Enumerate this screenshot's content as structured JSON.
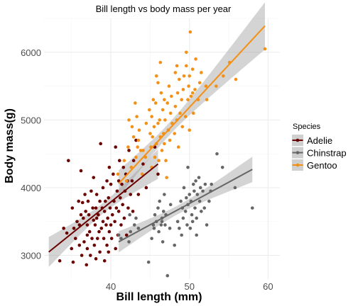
{
  "chart_data": {
    "type": "scatter",
    "title": "Bill length vs body mass per year",
    "xlabel": "Bill length (mm)",
    "ylabel": "Body mass(g)",
    "xlim": [
      31.5,
      61.5
    ],
    "ylim": [
      2650,
      6500
    ],
    "x_ticks": [
      40,
      50,
      60
    ],
    "y_ticks": [
      3000,
      4000,
      5000,
      6000
    ],
    "grid": true,
    "legend": {
      "title": "Species",
      "placement": "right"
    },
    "series": [
      {
        "name": "Adelie",
        "color": "#6b0000",
        "fit": {
          "x": [
            32.1,
            46.0
          ],
          "y": [
            3050,
            4350
          ]
        },
        "points": [
          [
            33.5,
            2920
          ],
          [
            34.0,
            3400
          ],
          [
            34.4,
            3330
          ],
          [
            34.6,
            4400
          ],
          [
            35.0,
            3100
          ],
          [
            35.1,
            3700
          ],
          [
            35.3,
            3400
          ],
          [
            35.5,
            3250
          ],
          [
            35.7,
            3500
          ],
          [
            35.9,
            3800
          ],
          [
            35.2,
            2900
          ],
          [
            36.0,
            3450
          ],
          [
            36.0,
            3150
          ],
          [
            36.2,
            3600
          ],
          [
            36.2,
            4250
          ],
          [
            36.4,
            3780
          ],
          [
            36.5,
            3550
          ],
          [
            36.6,
            3200
          ],
          [
            36.7,
            3900
          ],
          [
            36.8,
            3650
          ],
          [
            36.9,
            2860
          ],
          [
            37.0,
            3450
          ],
          [
            37.0,
            3100
          ],
          [
            37.1,
            3800
          ],
          [
            37.2,
            3600
          ],
          [
            37.3,
            3350
          ],
          [
            37.4,
            3000
          ],
          [
            37.5,
            3950
          ],
          [
            37.6,
            3250
          ],
          [
            37.7,
            3700
          ],
          [
            37.8,
            3520
          ],
          [
            37.8,
            4150
          ],
          [
            37.9,
            3150
          ],
          [
            38.0,
            3450
          ],
          [
            38.1,
            3700
          ],
          [
            38.1,
            2950
          ],
          [
            38.2,
            3900
          ],
          [
            38.3,
            3250
          ],
          [
            38.4,
            3600
          ],
          [
            38.5,
            3350
          ],
          [
            38.6,
            3800
          ],
          [
            38.6,
            3050
          ],
          [
            38.7,
            4650
          ],
          [
            38.8,
            3400
          ],
          [
            38.9,
            3700
          ],
          [
            39.0,
            3500
          ],
          [
            39.0,
            4000
          ],
          [
            39.1,
            3250
          ],
          [
            39.2,
            3650
          ],
          [
            39.2,
            2920
          ],
          [
            39.3,
            3800
          ],
          [
            39.4,
            3450
          ],
          [
            39.5,
            4100
          ],
          [
            39.5,
            3150
          ],
          [
            39.6,
            3550
          ],
          [
            39.7,
            3850
          ],
          [
            39.8,
            4300
          ],
          [
            39.8,
            3350
          ],
          [
            39.9,
            3700
          ],
          [
            40.0,
            3450
          ],
          [
            40.0,
            4050
          ],
          [
            40.1,
            3250
          ],
          [
            40.2,
            3600
          ],
          [
            40.3,
            4200
          ],
          [
            40.4,
            3800
          ],
          [
            40.5,
            3500
          ],
          [
            40.6,
            4600
          ],
          [
            40.7,
            3700
          ],
          [
            40.8,
            3950
          ],
          [
            40.9,
            3300
          ],
          [
            41.0,
            4100
          ],
          [
            41.0,
            3650
          ],
          [
            41.1,
            4400
          ],
          [
            41.2,
            3850
          ],
          [
            41.3,
            3450
          ],
          [
            41.4,
            4050
          ],
          [
            41.5,
            3750
          ],
          [
            41.6,
            4300
          ],
          [
            41.7,
            3550
          ],
          [
            41.8,
            3950
          ],
          [
            41.9,
            4200
          ],
          [
            42.0,
            3300
          ],
          [
            42.1,
            4100
          ],
          [
            42.2,
            3700
          ],
          [
            42.3,
            4550
          ],
          [
            42.5,
            3900
          ],
          [
            42.7,
            4100
          ],
          [
            42.8,
            3650
          ],
          [
            42.9,
            4400
          ],
          [
            43.2,
            4700
          ],
          [
            43.5,
            3900
          ],
          [
            44.1,
            4350
          ],
          [
            44.5,
            4000
          ],
          [
            45.6,
            4600
          ],
          [
            46.0,
            4200
          ],
          [
            37.0,
            3300
          ],
          [
            38.2,
            3550
          ],
          [
            39.7,
            3050
          ],
          [
            40.6,
            3100
          ],
          [
            36.3,
            3000
          ]
        ]
      },
      {
        "name": "Chinstrap",
        "color": "#666666",
        "fit": {
          "x": [
            41.0,
            58.0
          ],
          "y": [
            3200,
            4270
          ]
        },
        "points": [
          [
            41.0,
            3300
          ],
          [
            41.3,
            3250
          ],
          [
            42.3,
            3200
          ],
          [
            42.4,
            3600
          ],
          [
            42.5,
            3350
          ],
          [
            43.0,
            3450
          ],
          [
            43.2,
            3550
          ],
          [
            43.5,
            3400
          ],
          [
            45.2,
            3250
          ],
          [
            45.5,
            3400
          ],
          [
            45.6,
            3600
          ],
          [
            45.8,
            3500
          ],
          [
            46.0,
            3700
          ],
          [
            46.1,
            3350
          ],
          [
            46.2,
            3800
          ],
          [
            46.4,
            3450
          ],
          [
            46.5,
            3550
          ],
          [
            46.6,
            3200
          ],
          [
            46.7,
            3650
          ],
          [
            46.8,
            3900
          ],
          [
            46.9,
            3450
          ],
          [
            47.0,
            3600
          ],
          [
            47.2,
            2700
          ],
          [
            47.5,
            3400
          ],
          [
            47.6,
            3750
          ],
          [
            48.1,
            3150
          ],
          [
            48.5,
            3500
          ],
          [
            48.7,
            3400
          ],
          [
            48.9,
            3800
          ],
          [
            49.0,
            3300
          ],
          [
            49.1,
            3700
          ],
          [
            49.2,
            3550
          ],
          [
            49.3,
            4000
          ],
          [
            49.5,
            3650
          ],
          [
            49.6,
            3850
          ],
          [
            49.7,
            3450
          ],
          [
            49.8,
            3750
          ],
          [
            50.0,
            3900
          ],
          [
            50.1,
            3400
          ],
          [
            50.2,
            3800
          ],
          [
            50.3,
            3600
          ],
          [
            50.4,
            3500
          ],
          [
            50.5,
            4050
          ],
          [
            50.6,
            3950
          ],
          [
            50.7,
            3700
          ],
          [
            50.8,
            4100
          ],
          [
            50.9,
            3550
          ],
          [
            51.0,
            3900
          ],
          [
            51.3,
            3800
          ],
          [
            51.4,
            4000
          ],
          [
            51.5,
            3650
          ],
          [
            51.7,
            3950
          ],
          [
            51.9,
            3700
          ],
          [
            52.0,
            4050
          ],
          [
            52.2,
            3450
          ],
          [
            52.5,
            3800
          ],
          [
            52.7,
            3950
          ],
          [
            52.8,
            4050
          ],
          [
            53.5,
            4500
          ],
          [
            54.2,
            4300
          ],
          [
            55.8,
            4000
          ],
          [
            58.0,
            3700
          ],
          [
            50.9,
            3300
          ],
          [
            45.4,
            3450
          ],
          [
            44.8,
            2900
          ],
          [
            49.8,
            4300
          ],
          [
            51.2,
            4150
          ],
          [
            46.5,
            3500
          ]
        ]
      },
      {
        "name": "Gentoo",
        "color": "#f39015",
        "fit": {
          "x": [
            41.0,
            59.6
          ],
          "y": [
            4060,
            6390
          ]
        },
        "points": [
          [
            40.9,
            4200
          ],
          [
            41.7,
            4400
          ],
          [
            42.0,
            4100
          ],
          [
            42.2,
            4600
          ],
          [
            42.6,
            4300
          ],
          [
            42.7,
            4900
          ],
          [
            42.9,
            4750
          ],
          [
            43.2,
            4450
          ],
          [
            43.3,
            5050
          ],
          [
            43.4,
            4600
          ],
          [
            43.5,
            4700
          ],
          [
            43.6,
            4850
          ],
          [
            43.8,
            4550
          ],
          [
            44.0,
            4200
          ],
          [
            44.4,
            4450
          ],
          [
            44.5,
            4950
          ],
          [
            44.9,
            5150
          ],
          [
            45.0,
            4800
          ],
          [
            45.1,
            4600
          ],
          [
            45.2,
            5050
          ],
          [
            45.2,
            4300
          ],
          [
            45.3,
            4750
          ],
          [
            45.4,
            5300
          ],
          [
            45.5,
            4900
          ],
          [
            45.6,
            4450
          ],
          [
            45.7,
            5250
          ],
          [
            45.8,
            4650
          ],
          [
            46.0,
            5550
          ],
          [
            46.0,
            4950
          ],
          [
            46.1,
            4400
          ],
          [
            46.2,
            5000
          ],
          [
            46.3,
            4750
          ],
          [
            46.4,
            5400
          ],
          [
            46.5,
            4550
          ],
          [
            46.6,
            5150
          ],
          [
            46.7,
            4800
          ],
          [
            46.8,
            5300
          ],
          [
            46.8,
            4650
          ],
          [
            46.9,
            5000
          ],
          [
            47.0,
            4400
          ],
          [
            47.2,
            5250
          ],
          [
            47.3,
            4850
          ],
          [
            47.4,
            5500
          ],
          [
            47.5,
            4700
          ],
          [
            47.6,
            5100
          ],
          [
            47.7,
            5350
          ],
          [
            47.8,
            4950
          ],
          [
            48.1,
            4800
          ],
          [
            48.2,
            5200
          ],
          [
            48.2,
            5700
          ],
          [
            48.4,
            5000
          ],
          [
            48.5,
            5400
          ],
          [
            48.6,
            4600
          ],
          [
            48.7,
            5600
          ],
          [
            48.8,
            5100
          ],
          [
            49.0,
            5300
          ],
          [
            49.1,
            4900
          ],
          [
            49.2,
            5450
          ],
          [
            49.3,
            5650
          ],
          [
            49.5,
            5050
          ],
          [
            49.6,
            5800
          ],
          [
            49.8,
            5300
          ],
          [
            49.9,
            5500
          ],
          [
            50.0,
            4850
          ],
          [
            50.0,
            5650
          ],
          [
            50.1,
            6300
          ],
          [
            50.2,
            5350
          ],
          [
            50.4,
            5750
          ],
          [
            50.5,
            5100
          ],
          [
            50.7,
            5450
          ],
          [
            50.8,
            5900
          ],
          [
            51.1,
            5300
          ],
          [
            51.3,
            5550
          ],
          [
            51.5,
            5700
          ],
          [
            52.1,
            5500
          ],
          [
            52.2,
            5300
          ],
          [
            53.4,
            5500
          ],
          [
            54.3,
            5650
          ],
          [
            55.1,
            5850
          ],
          [
            55.9,
            5600
          ],
          [
            59.6,
            6050
          ],
          [
            48.4,
            5800
          ],
          [
            49.6,
            6000
          ],
          [
            45.8,
            5650
          ],
          [
            43.1,
            5250
          ],
          [
            46.3,
            5850
          ],
          [
            44.1,
            4550
          ],
          [
            47.1,
            4150
          ],
          [
            42.3,
            5000
          ],
          [
            50.4,
            5400
          ]
        ]
      }
    ]
  }
}
